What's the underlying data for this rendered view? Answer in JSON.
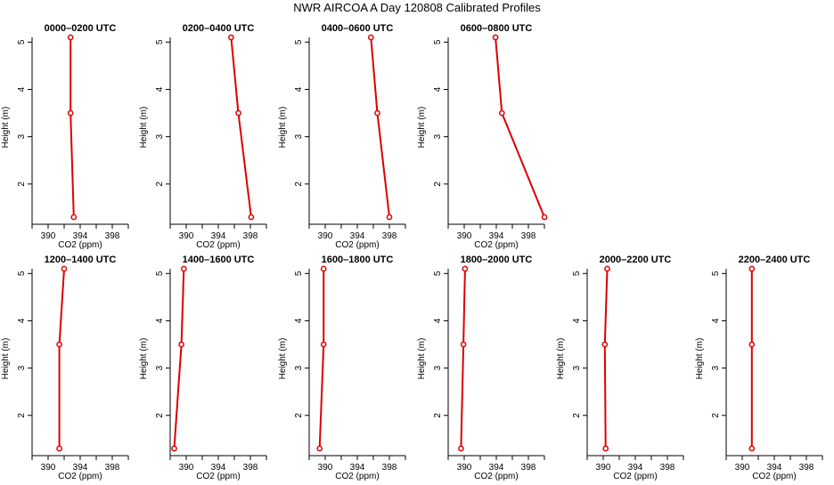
{
  "title": "NWR AIRCOA A  Day 120808  Calibrated Profiles",
  "colors": {
    "series": "#dd0000",
    "axis": "#000000"
  },
  "chart_data": [
    {
      "type": "line",
      "title": "0000–0200 UTC",
      "xlabel": "CO2 (ppm)",
      "ylabel": "Height (m)",
      "xlim": [
        388,
        400
      ],
      "ylim": [
        1.3,
        5.1
      ],
      "xticks": [
        "390",
        "394",
        "398"
      ],
      "yticks": [
        "2",
        "3",
        "4",
        "5"
      ],
      "series": [
        {
          "x": [
            393.2,
            392.8,
            392.8
          ],
          "y": [
            1.3,
            3.5,
            5.1
          ]
        }
      ]
    },
    {
      "type": "line",
      "title": "0200–0400 UTC",
      "xlabel": "CO2 (ppm)",
      "ylabel": "Height (m)",
      "xlim": [
        388,
        400
      ],
      "ylim": [
        1.3,
        5.1
      ],
      "xticks": [
        "390",
        "394",
        "398"
      ],
      "yticks": [
        "2",
        "3",
        "4",
        "5"
      ],
      "series": [
        {
          "x": [
            398.1,
            396.5,
            395.6
          ],
          "y": [
            1.3,
            3.5,
            5.1
          ]
        }
      ]
    },
    {
      "type": "line",
      "title": "0400–0600 UTC",
      "xlabel": "CO2 (ppm)",
      "ylabel": "Height (m)",
      "xlim": [
        388,
        400
      ],
      "ylim": [
        1.3,
        5.1
      ],
      "xticks": [
        "390",
        "394",
        "398"
      ],
      "yticks": [
        "2",
        "3",
        "4",
        "5"
      ],
      "series": [
        {
          "x": [
            398.0,
            396.5,
            395.7
          ],
          "y": [
            1.3,
            3.5,
            5.1
          ]
        }
      ]
    },
    {
      "type": "line",
      "title": "0600–0800 UTC",
      "xlabel": "CO2 (ppm)",
      "ylabel": "Height (m)",
      "xlim": [
        388,
        400
      ],
      "ylim": [
        1.3,
        5.1
      ],
      "xticks": [
        "390",
        "394",
        "398"
      ],
      "yticks": [
        "2",
        "3",
        "4",
        "5"
      ],
      "series": [
        {
          "x": [
            400.0,
            394.7,
            393.9
          ],
          "y": [
            1.3,
            3.5,
            5.1
          ]
        }
      ]
    },
    {
      "type": "line",
      "title": "1200–1400 UTC",
      "xlabel": "CO2 (ppm)",
      "ylabel": "Height (m)",
      "xlim": [
        388,
        400
      ],
      "ylim": [
        1.3,
        5.1
      ],
      "xticks": [
        "390",
        "394",
        "398"
      ],
      "yticks": [
        "2",
        "3",
        "4",
        "5"
      ],
      "series": [
        {
          "x": [
            391.4,
            391.4,
            392.0
          ],
          "y": [
            1.3,
            3.5,
            5.1
          ]
        }
      ]
    },
    {
      "type": "line",
      "title": "1400–1600 UTC",
      "xlabel": "CO2 (ppm)",
      "ylabel": "Height (m)",
      "xlim": [
        388,
        400
      ],
      "ylim": [
        1.3,
        5.1
      ],
      "xticks": [
        "390",
        "394",
        "398"
      ],
      "yticks": [
        "2",
        "3",
        "4",
        "5"
      ],
      "series": [
        {
          "x": [
            388.5,
            389.4,
            389.7
          ],
          "y": [
            1.3,
            3.5,
            5.1
          ]
        }
      ]
    },
    {
      "type": "line",
      "title": "1600–1800 UTC",
      "xlabel": "CO2 (ppm)",
      "ylabel": "Height (m)",
      "xlim": [
        388,
        400
      ],
      "ylim": [
        1.3,
        5.1
      ],
      "xticks": [
        "390",
        "394",
        "398"
      ],
      "yticks": [
        "2",
        "3",
        "4",
        "5"
      ],
      "series": [
        {
          "x": [
            389.3,
            389.8,
            389.8
          ],
          "y": [
            1.3,
            3.5,
            5.1
          ]
        }
      ]
    },
    {
      "type": "line",
      "title": "1800–2000 UTC",
      "xlabel": "CO2 (ppm)",
      "ylabel": "Height (m)",
      "xlim": [
        388,
        400
      ],
      "ylim": [
        1.3,
        5.1
      ],
      "xticks": [
        "390",
        "394",
        "398"
      ],
      "yticks": [
        "2",
        "3",
        "4",
        "5"
      ],
      "series": [
        {
          "x": [
            389.6,
            389.9,
            390.1
          ],
          "y": [
            1.3,
            3.5,
            5.1
          ]
        }
      ]
    },
    {
      "type": "line",
      "title": "2000–2200 UTC",
      "xlabel": "CO2 (ppm)",
      "ylabel": "Height (m)",
      "xlim": [
        388,
        400
      ],
      "ylim": [
        1.3,
        5.1
      ],
      "xticks": [
        "390",
        "394",
        "398"
      ],
      "yticks": [
        "2",
        "3",
        "4",
        "5"
      ],
      "series": [
        {
          "x": [
            390.3,
            390.2,
            390.5
          ],
          "y": [
            1.3,
            3.5,
            5.1
          ]
        }
      ]
    },
    {
      "type": "line",
      "title": "2200–2400 UTC",
      "xlabel": "CO2 (ppm)",
      "ylabel": "Height (m)",
      "xlim": [
        388,
        400
      ],
      "ylim": [
        1.3,
        5.1
      ],
      "xticks": [
        "390",
        "394",
        "398"
      ],
      "yticks": [
        "2",
        "3",
        "4",
        "5"
      ],
      "series": [
        {
          "x": [
            391.2,
            391.2,
            391.2
          ],
          "y": [
            1.3,
            3.5,
            5.1
          ]
        }
      ]
    }
  ]
}
